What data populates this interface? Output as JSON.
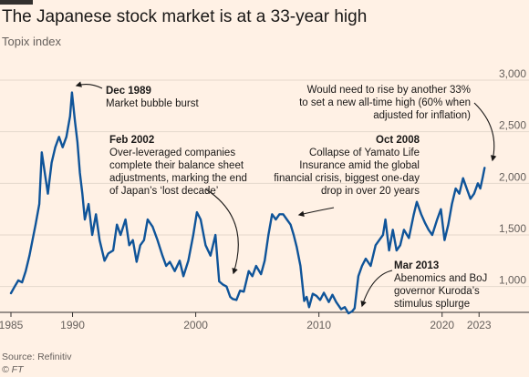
{
  "header": {
    "title": "The Japanese stock market is at a 33-year high",
    "subtitle": "Topix index"
  },
  "footer": {
    "source": "Source: Refinitiv",
    "credit": "© FT"
  },
  "colors": {
    "background": "#fff1e5",
    "line": "#0f5499",
    "grid": "#e5d8cc",
    "text": "#33302e"
  },
  "chart_data": {
    "type": "line",
    "title": "The Japanese stock market is at a 33-year high",
    "subtitle": "Topix index",
    "xlabel": "",
    "ylabel": "",
    "xlim": [
      1985.0,
      2023.5
    ],
    "ylim": [
      750,
      3000
    ],
    "yticks": [
      1000,
      1500,
      2000,
      2500,
      3000
    ],
    "ytick_labels": [
      "1,000",
      "1,500",
      "2,000",
      "2,500",
      "3,000"
    ],
    "xticks": [
      1985,
      1990,
      2000,
      2010,
      2020,
      2023
    ],
    "xtick_labels": [
      "1985",
      "1990",
      "2000",
      "2010",
      "2020",
      "2023"
    ],
    "grid": "horizontal",
    "series": [
      {
        "x": [
          1985.0,
          1985.3,
          1985.6,
          1985.9,
          1986.2,
          1986.5,
          1986.8,
          1987.0,
          1987.3,
          1987.5,
          1987.8,
          1988.0,
          1988.3,
          1988.6,
          1988.9,
          1989.2,
          1989.5,
          1989.8,
          1989.95,
          1990.2,
          1990.4,
          1990.6,
          1990.8,
          1991.0,
          1991.3,
          1991.6,
          1991.9,
          1992.2,
          1992.6,
          1992.9,
          1993.3,
          1993.6,
          1993.9,
          1994.3,
          1994.6,
          1994.9,
          1995.2,
          1995.5,
          1995.8,
          1996.1,
          1996.5,
          1996.9,
          1997.3,
          1997.6,
          1997.9,
          1998.3,
          1998.7,
          1999.0,
          1999.4,
          1999.8,
          2000.1,
          2000.4,
          2000.8,
          2001.2,
          2001.6,
          2001.9,
          2002.2,
          2002.5,
          2002.8,
          2003.0,
          2003.3,
          2003.6,
          2003.9,
          2004.3,
          2004.6,
          2004.9,
          2005.3,
          2005.6,
          2005.9,
          2006.2,
          2006.5,
          2006.8,
          2007.1,
          2007.4,
          2007.7,
          2007.95,
          2008.2,
          2008.5,
          2008.8,
          2009.0,
          2009.2,
          2009.5,
          2009.8,
          2010.1,
          2010.4,
          2010.8,
          2011.1,
          2011.4,
          2011.8,
          2012.1,
          2012.4,
          2012.7,
          2012.9,
          2013.2,
          2013.5,
          2013.8,
          2014.2,
          2014.6,
          2014.9,
          2015.2,
          2015.4,
          2015.7,
          2016.0,
          2016.3,
          2016.6,
          2016.9,
          2017.3,
          2017.7,
          2017.95,
          2018.3,
          2018.6,
          2018.9,
          2019.2,
          2019.6,
          2019.9,
          2020.2,
          2020.5,
          2020.8,
          2021.1,
          2021.4,
          2021.7,
          2022.0,
          2022.3,
          2022.6,
          2022.9,
          2023.1,
          2023.3,
          2023.45
        ],
        "values": [
          935,
          1000,
          1060,
          1040,
          1150,
          1300,
          1480,
          1600,
          1800,
          2300,
          2060,
          1900,
          2200,
          2350,
          2450,
          2350,
          2450,
          2650,
          2880,
          2600,
          2400,
          2100,
          1900,
          1650,
          1800,
          1500,
          1700,
          1450,
          1250,
          1320,
          1350,
          1600,
          1500,
          1650,
          1400,
          1450,
          1240,
          1400,
          1450,
          1650,
          1580,
          1450,
          1300,
          1200,
          1240,
          1150,
          1250,
          1100,
          1250,
          1500,
          1720,
          1650,
          1400,
          1300,
          1500,
          1050,
          1020,
          1000,
          900,
          880,
          870,
          960,
          950,
          1150,
          1100,
          1200,
          1120,
          1250,
          1500,
          1700,
          1650,
          1700,
          1700,
          1650,
          1600,
          1500,
          1380,
          1200,
          860,
          900,
          800,
          930,
          910,
          870,
          940,
          850,
          920,
          850,
          780,
          800,
          740,
          760,
          790,
          1100,
          1200,
          1270,
          1200,
          1400,
          1450,
          1500,
          1650,
          1350,
          1550,
          1350,
          1400,
          1550,
          1470,
          1700,
          1820,
          1700,
          1620,
          1550,
          1500,
          1650,
          1750,
          1450,
          1600,
          1800,
          1950,
          1900,
          2050,
          1950,
          1850,
          1900,
          2000,
          1950,
          2060,
          2150
        ],
        "color": "#0f5499"
      }
    ],
    "annotations": [
      {
        "date": "Dec 1989",
        "text": [
          "Market bubble burst"
        ]
      },
      {
        "date": "Feb 2002",
        "text": [
          "Over-leveraged companies",
          "complete their balance sheet",
          "adjustments, marking the end",
          "of Japan’s ‘lost decade’"
        ]
      },
      {
        "date": "Oct 2008",
        "text": [
          "Collapse of Yamato Life",
          "Insurance amid the global",
          "financial crisis, biggest one-day",
          "drop in over 20 years"
        ]
      },
      {
        "date": "Mar 2013",
        "text": [
          "Abenomics and BoJ",
          "governor Kuroda’s",
          "stimulus splurge"
        ]
      },
      {
        "date": "",
        "text": [
          "Would need to rise by another 33%",
          "to set a new all-time high (60% when",
          "adjusted for inflation)"
        ]
      }
    ]
  }
}
